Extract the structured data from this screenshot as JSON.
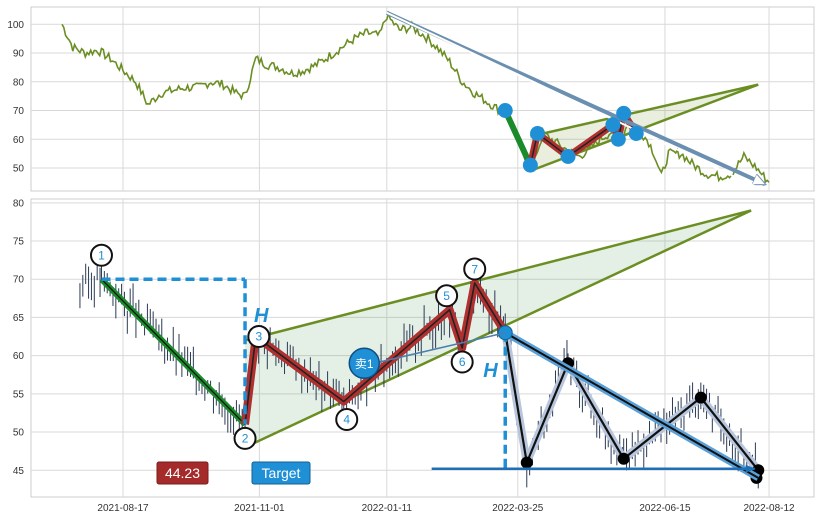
{
  "chart_data": [
    {
      "type": "line",
      "panel": "top",
      "title": "",
      "xlabel": "",
      "ylabel": "",
      "ylim": [
        42,
        106
      ],
      "yticks": [
        50,
        60,
        70,
        80,
        90,
        100
      ],
      "grid": true,
      "line_color": "#6b8e23",
      "price_series": [
        [
          "2021-07-14",
          100
        ],
        [
          "2021-07-20",
          92
        ],
        [
          "2021-07-27",
          90
        ],
        [
          "2021-08-03",
          91
        ],
        [
          "2021-08-10",
          88
        ],
        [
          "2021-08-17",
          84
        ],
        [
          "2021-08-24",
          80
        ],
        [
          "2021-08-31",
          72
        ],
        [
          "2021-09-07",
          76
        ],
        [
          "2021-09-14",
          77
        ],
        [
          "2021-09-21",
          78
        ],
        [
          "2021-09-28",
          78
        ],
        [
          "2021-10-05",
          80
        ],
        [
          "2021-10-12",
          79
        ],
        [
          "2021-10-19",
          76
        ],
        [
          "2021-10-24",
          75
        ],
        [
          "2021-10-30",
          88
        ],
        [
          "2021-11-05",
          86
        ],
        [
          "2021-11-12",
          85
        ],
        [
          "2021-11-19",
          83
        ],
        [
          "2021-11-26",
          84
        ],
        [
          "2021-12-03",
          86
        ],
        [
          "2021-12-10",
          89
        ],
        [
          "2021-12-17",
          92
        ],
        [
          "2021-12-24",
          95
        ],
        [
          "2021-12-31",
          97
        ],
        [
          "2022-01-07",
          96
        ],
        [
          "2022-01-11",
          103
        ],
        [
          "2022-01-18",
          98
        ],
        [
          "2022-01-25",
          99
        ],
        [
          "2022-02-01",
          96
        ],
        [
          "2022-02-08",
          92
        ],
        [
          "2022-02-15",
          87
        ],
        [
          "2022-02-22",
          80
        ],
        [
          "2022-03-01",
          76
        ],
        [
          "2022-03-08",
          73
        ],
        [
          "2022-03-15",
          70
        ],
        [
          "2022-03-18",
          71
        ],
        [
          "2022-03-23",
          63
        ],
        [
          "2022-03-28",
          55
        ],
        [
          "2022-04-01",
          52
        ],
        [
          "2022-04-05",
          56
        ],
        [
          "2022-04-08",
          62
        ],
        [
          "2022-04-15",
          59
        ],
        [
          "2022-04-22",
          56
        ],
        [
          "2022-04-28",
          54
        ],
        [
          "2022-05-03",
          56
        ],
        [
          "2022-05-10",
          60
        ],
        [
          "2022-05-17",
          63
        ],
        [
          "2022-05-23",
          62
        ],
        [
          "2022-05-26",
          67
        ],
        [
          "2022-06-01",
          63
        ],
        [
          "2022-06-06",
          59
        ],
        [
          "2022-06-09",
          55
        ],
        [
          "2022-06-13",
          47
        ],
        [
          "2022-06-17",
          55
        ],
        [
          "2022-06-24",
          55
        ],
        [
          "2022-07-01",
          51
        ],
        [
          "2022-07-08",
          48
        ],
        [
          "2022-07-15",
          47
        ],
        [
          "2022-07-22",
          48
        ],
        [
          "2022-07-29",
          54
        ],
        [
          "2022-08-05",
          50
        ],
        [
          "2022-08-12",
          45
        ]
      ],
      "zigzag_points": [
        [
          "2022-03-18",
          70
        ],
        [
          "2022-04-01",
          51
        ],
        [
          "2022-04-05",
          62
        ],
        [
          "2022-04-22",
          54
        ],
        [
          "2022-05-17",
          65
        ],
        [
          "2022-05-20",
          60
        ],
        [
          "2022-05-23",
          69
        ],
        [
          "2022-05-30",
          62
        ]
      ],
      "trend_lines": [
        {
          "from": [
            "2022-04-01",
            49
          ],
          "to": [
            "2022-08-06",
            79
          ],
          "color": "#6b8e23"
        },
        {
          "from": [
            "2022-04-01",
            61
          ],
          "to": [
            "2022-08-06",
            79
          ],
          "color": "#6b8e23"
        }
      ],
      "arrow": {
        "from": [
          "2022-01-11",
          104
        ],
        "to": [
          "2022-08-12",
          44
        ]
      }
    },
    {
      "type": "candlestick",
      "panel": "bottom",
      "title": "",
      "xlabel": "",
      "ylabel": "",
      "ylim": [
        41.5,
        80.5
      ],
      "yticks": [
        45,
        50,
        55,
        60,
        65,
        70,
        75,
        80
      ],
      "xticks": [
        "2021-08-17",
        "2021-11-01",
        "2022-01-11",
        "2022-03-25",
        "2022-06-15",
        "2022-08-12"
      ],
      "grid": true,
      "pattern_points": [
        {
          "label": "1",
          "date": "2021-08-05",
          "value": 70
        },
        {
          "label": "2",
          "date": "2021-10-24",
          "value": 51
        },
        {
          "label": "3",
          "date": "2021-10-30",
          "value": 62.5
        },
        {
          "label": "4",
          "date": "2021-12-18",
          "value": 54
        },
        {
          "label": "5",
          "date": "2022-02-15",
          "value": 66
        },
        {
          "label": "6",
          "date": "2022-02-22",
          "value": 61
        },
        {
          "label": "7",
          "date": "2022-03-01",
          "value": 69.5
        },
        {
          "label": "",
          "date": "2022-03-18",
          "value": 63
        }
      ],
      "wave_points": [
        [
          "2022-03-18",
          63
        ],
        [
          "2022-03-30",
          46
        ],
        [
          "2022-04-22",
          59
        ],
        [
          "2022-05-23",
          46.5
        ],
        [
          "2022-07-05",
          54.5
        ],
        [
          "2022-08-06",
          45
        ],
        [
          "2022-08-05",
          44
        ]
      ],
      "triangle": {
        "upper": {
          "from": [
            "2021-10-24",
            62
          ],
          "to": [
            "2022-08-02",
            79
          ]
        },
        "lower": {
          "from": [
            "2021-10-24",
            48
          ],
          "to": [
            "2022-08-02",
            79
          ]
        }
      },
      "breakout_line": {
        "from": [
          "2022-03-18",
          63
        ],
        "to": [
          "2022-08-06",
          44
        ]
      },
      "target_line": {
        "from": [
          "2022-02-05",
          45.2
        ],
        "to": [
          "2022-08-04",
          45.2
        ]
      },
      "height_lines": [
        {
          "date": "2021-10-24",
          "from": 70,
          "to": 51
        },
        {
          "date": "2022-03-18",
          "from": 63,
          "to": 45.2
        }
      ],
      "h_labels": [
        "H",
        "H"
      ],
      "sell_marker": {
        "label": "卖1",
        "date": "2021-12-30",
        "value": 59
      },
      "target_label": "Target",
      "target_value_label": "44.23"
    }
  ]
}
